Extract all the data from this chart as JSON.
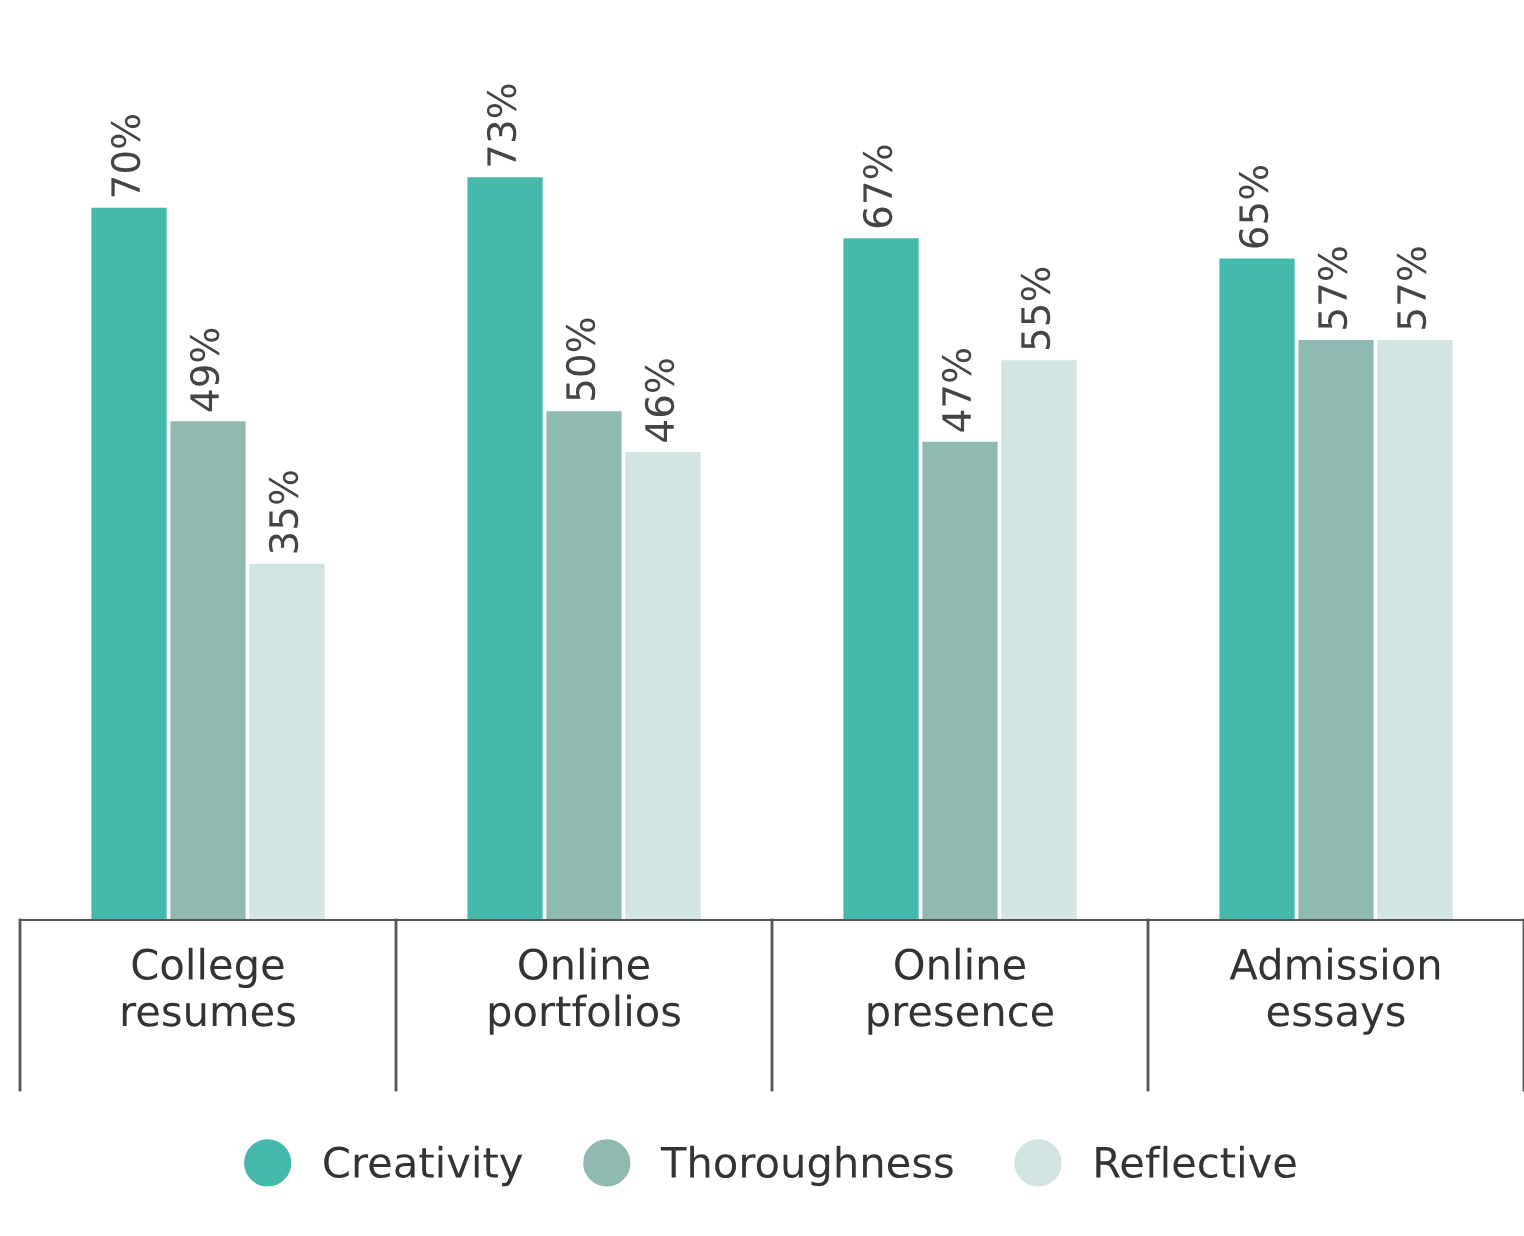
{
  "chart_data": {
    "type": "bar",
    "categories": [
      "College\nresumes",
      "Online\nportfolios",
      "Online\npresence",
      "Admission\nessays"
    ],
    "series": [
      {
        "name": "Creativity",
        "color": "#45b9ab",
        "values": [
          70,
          73,
          67,
          65
        ],
        "value_labels": [
          "70%",
          "73%",
          "67%",
          "65%"
        ]
      },
      {
        "name": "Thoroughness",
        "color": "#8fbab2",
        "values": [
          49,
          50,
          47,
          57
        ],
        "value_labels": [
          "49%",
          "50%",
          "47%",
          "57%"
        ]
      },
      {
        "name": "Reflective",
        "color": "#d2e5e3",
        "values": [
          35,
          46,
          55,
          57
        ],
        "value_labels": [
          "35%",
          "46%",
          "55%",
          "57%"
        ]
      }
    ],
    "legend": "bottom",
    "grid": false
  }
}
